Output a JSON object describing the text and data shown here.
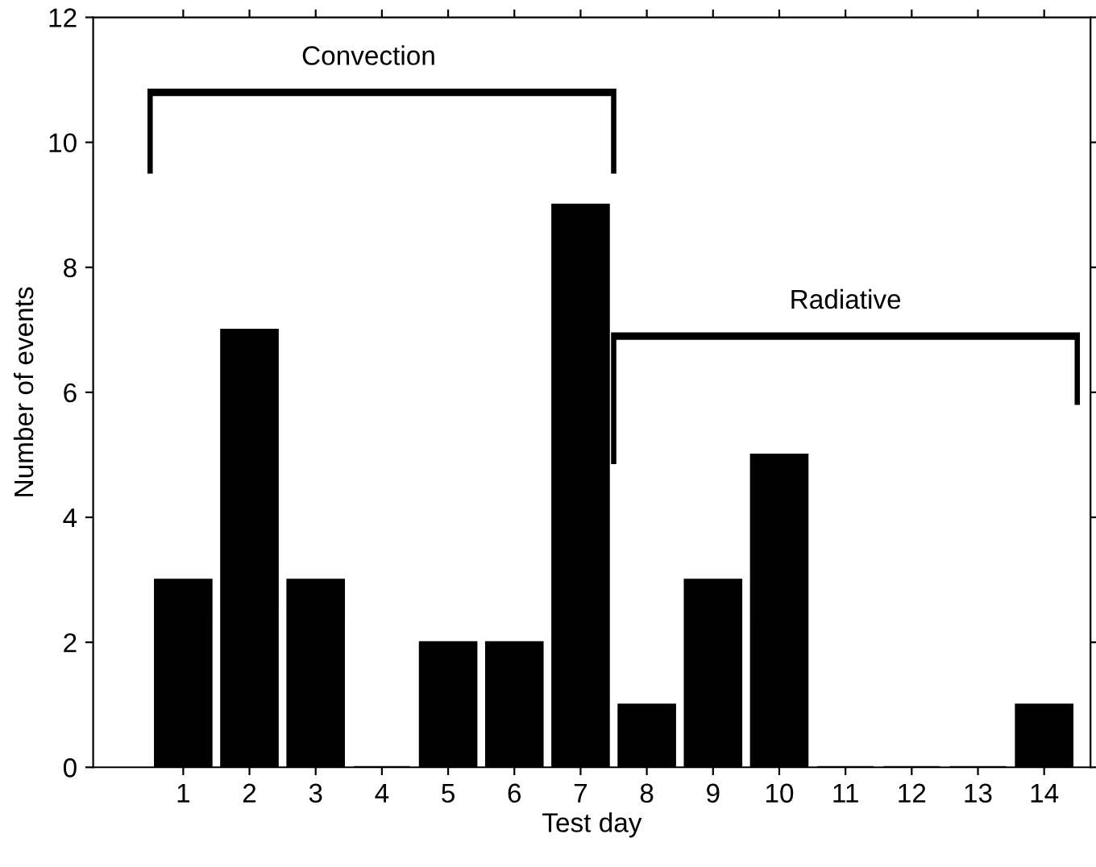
{
  "chart_data": {
    "type": "bar",
    "xlabel": "Test day",
    "ylabel": "Number of events",
    "categories": [
      "1",
      "2",
      "3",
      "4",
      "5",
      "6",
      "7",
      "8",
      "9",
      "10",
      "11",
      "12",
      "13",
      "14"
    ],
    "values": [
      3,
      7,
      3,
      0,
      2,
      2,
      9,
      1,
      3,
      5,
      0,
      0,
      0,
      1
    ],
    "color": "#000000",
    "ylim": [
      0,
      12
    ],
    "yticks": [
      0,
      2,
      4,
      6,
      8,
      10,
      12
    ],
    "grid": false,
    "legend": false,
    "annotations": [
      "Convection",
      "Radiative"
    ]
  }
}
